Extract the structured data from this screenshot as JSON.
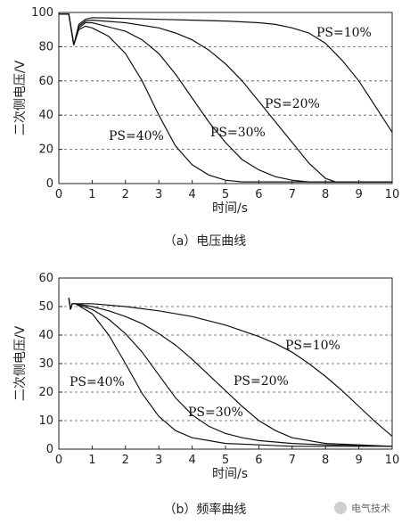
{
  "chart_data": [
    {
      "type": "line",
      "caption": "（a）电压曲线",
      "xlabel": "时间/s",
      "ylabel": "二次侧电压/V",
      "xlim": [
        0,
        10
      ],
      "ylim": [
        0,
        100
      ],
      "x_ticks": [
        "0",
        "1",
        "2",
        "3",
        "4",
        "5",
        "6",
        "7",
        "8",
        "9",
        "10"
      ],
      "y_ticks": [
        "0",
        "20",
        "40",
        "60",
        "80",
        "100"
      ],
      "grid": true,
      "series": [
        {
          "name": "PS=10%",
          "label": "PS=10%",
          "x": [
            0,
            0.3,
            0.45,
            0.6,
            0.8,
            1.0,
            2,
            3,
            4,
            5,
            6,
            6.5,
            7,
            7.5,
            8,
            8.5,
            9,
            9.5,
            10
          ],
          "y": [
            99,
            99,
            81,
            93,
            96,
            97,
            96.5,
            96,
            95.5,
            95,
            94,
            93,
            91,
            88,
            82,
            72,
            60,
            45,
            30
          ]
        },
        {
          "name": "PS=20%",
          "label": "PS=20%",
          "x": [
            0,
            0.3,
            0.45,
            0.6,
            0.8,
            1.0,
            2,
            3,
            3.5,
            4,
            4.5,
            5,
            5.5,
            6,
            6.5,
            7,
            7.5,
            8,
            8.3,
            10
          ],
          "y": [
            99,
            99,
            81,
            92,
            95,
            95.5,
            94,
            91,
            88,
            84,
            78,
            70,
            60,
            48,
            36,
            24,
            12,
            3,
            1,
            1
          ]
        },
        {
          "name": "PS=30%",
          "label": "PS=30%",
          "x": [
            0,
            0.3,
            0.45,
            0.6,
            0.8,
            1.0,
            2,
            2.5,
            3,
            3.5,
            4,
            4.5,
            5,
            5.5,
            6,
            6.5,
            7,
            7.5,
            8,
            10
          ],
          "y": [
            99,
            99,
            81,
            91,
            94,
            94,
            89,
            84,
            76,
            64,
            50,
            36,
            24,
            14,
            8,
            4,
            2,
            1,
            1,
            1
          ]
        },
        {
          "name": "PS=40%",
          "label": "PS=40%",
          "x": [
            0,
            0.3,
            0.45,
            0.6,
            0.8,
            1.0,
            1.5,
            2,
            2.5,
            3,
            3.5,
            4,
            4.5,
            5,
            5.5,
            6,
            10
          ],
          "y": [
            99,
            99,
            81,
            90,
            92,
            91,
            86,
            76,
            60,
            40,
            22,
            11,
            5,
            2,
            1,
            1,
            1
          ]
        }
      ]
    },
    {
      "type": "line",
      "caption": "（b）频率曲线",
      "xlabel": "时间/s",
      "ylabel": "二次侧电压/V",
      "xlim": [
        0,
        10
      ],
      "ylim": [
        0,
        60
      ],
      "x_ticks": [
        "0",
        "1",
        "2",
        "3",
        "4",
        "5",
        "6",
        "7",
        "8",
        "9",
        "10"
      ],
      "y_ticks": [
        "0",
        "10",
        "20",
        "30",
        "40",
        "50",
        "60"
      ],
      "grid": true,
      "series": [
        {
          "name": "PS=10%",
          "label": "PS=10%",
          "x": [
            0.3,
            0.35,
            0.4,
            0.5,
            1,
            2,
            3,
            4,
            5,
            6,
            6.5,
            7,
            7.5,
            8,
            8.5,
            9,
            9.5,
            10
          ],
          "y": [
            53,
            49,
            51,
            51,
            51,
            50,
            48.5,
            46.5,
            43.5,
            39.5,
            37,
            34,
            30,
            25.5,
            20.5,
            15,
            9.5,
            4.5
          ]
        },
        {
          "name": "PS=20%",
          "label": "PS=20%",
          "x": [
            0.3,
            0.35,
            0.4,
            0.5,
            1,
            1.5,
            2,
            2.5,
            3,
            3.5,
            4,
            4.5,
            5,
            5.5,
            6,
            6.5,
            7,
            8,
            9,
            10
          ],
          "y": [
            53,
            49,
            51,
            51,
            50,
            48.5,
            46.5,
            44,
            40.5,
            36.5,
            31.5,
            26,
            20.5,
            15,
            10,
            6.5,
            4,
            2,
            1.5,
            1
          ]
        },
        {
          "name": "PS=30%",
          "label": "PS=30%",
          "x": [
            0.3,
            0.35,
            0.4,
            0.5,
            1,
            1.5,
            2,
            2.5,
            3,
            3.5,
            4,
            4.5,
            5,
            5.5,
            6,
            7,
            8,
            10
          ],
          "y": [
            53,
            49,
            51,
            51,
            49,
            45.5,
            40.5,
            34,
            26,
            18,
            12,
            8,
            5.5,
            4,
            3,
            2,
            1.5,
            1
          ]
        },
        {
          "name": "PS=40%",
          "label": "PS=40%",
          "x": [
            0.3,
            0.35,
            0.4,
            0.5,
            1,
            1.5,
            2,
            2.5,
            3,
            3.5,
            4,
            4.5,
            5,
            6,
            7,
            10
          ],
          "y": [
            53,
            49,
            51,
            51,
            47.5,
            40,
            30,
            19.5,
            11.5,
            6.5,
            4,
            3,
            2,
            1.5,
            1,
            1
          ]
        }
      ]
    }
  ],
  "watermark": {
    "text": "电气技术"
  }
}
